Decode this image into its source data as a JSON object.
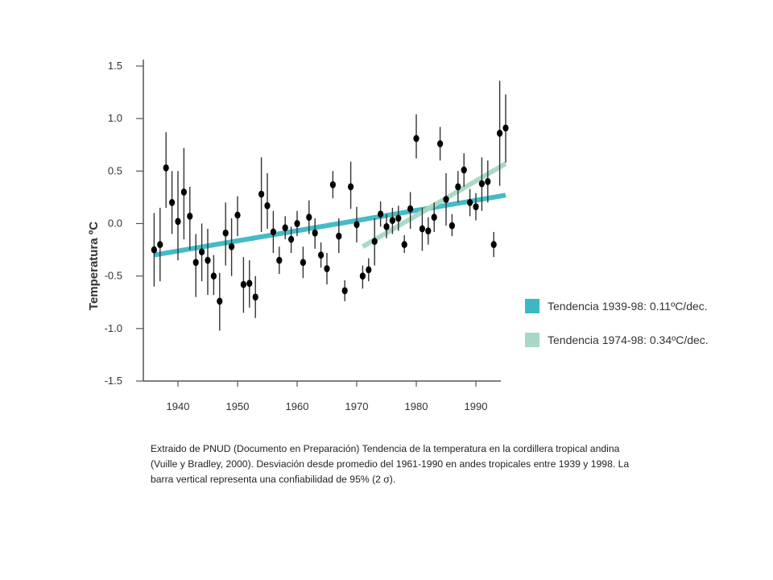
{
  "chart_data": {
    "type": "scatter",
    "title": "",
    "xlabel": "",
    "ylabel": "Temperatura ºC",
    "xlim": [
      1935,
      1995
    ],
    "ylim": [
      -1.5,
      1.5
    ],
    "x_ticks": [
      1940,
      1950,
      1960,
      1970,
      1980,
      1990
    ],
    "y_ticks": [
      1.5,
      1.0,
      0.5,
      0.0,
      -0.5,
      -1.0,
      -1.5
    ],
    "y_tick_labels": [
      "1.5",
      "1.0",
      "0.5",
      "0.0",
      "-0.5",
      "-1.0",
      "-1.5"
    ],
    "grid": false,
    "legend_position": "right",
    "points": [
      {
        "x": 1936,
        "y": -0.25,
        "lo": -0.6,
        "hi": 0.1
      },
      {
        "x": 1937,
        "y": -0.2,
        "lo": -0.55,
        "hi": 0.15
      },
      {
        "x": 1938,
        "y": 0.53,
        "lo": 0.15,
        "hi": 0.87
      },
      {
        "x": 1939,
        "y": 0.2,
        "lo": -0.1,
        "hi": 0.5
      },
      {
        "x": 1940,
        "y": 0.02,
        "lo": -0.35,
        "hi": 0.5
      },
      {
        "x": 1941,
        "y": 0.3,
        "lo": -0.15,
        "hi": 0.72
      },
      {
        "x": 1942,
        "y": 0.07,
        "lo": -0.25,
        "hi": 0.35
      },
      {
        "x": 1943,
        "y": -0.37,
        "lo": -0.7,
        "hi": -0.1
      },
      {
        "x": 1944,
        "y": -0.27,
        "lo": -0.55,
        "hi": 0.0
      },
      {
        "x": 1945,
        "y": -0.35,
        "lo": -0.68,
        "hi": -0.05
      },
      {
        "x": 1946,
        "y": -0.5,
        "lo": -0.68,
        "hi": -0.3
      },
      {
        "x": 1947,
        "y": -0.74,
        "lo": -1.02,
        "hi": -0.47
      },
      {
        "x": 1948,
        "y": -0.09,
        "lo": -0.4,
        "hi": 0.2
      },
      {
        "x": 1949,
        "y": -0.22,
        "lo": -0.5,
        "hi": 0.05
      },
      {
        "x": 1950,
        "y": 0.08,
        "lo": -0.12,
        "hi": 0.26
      },
      {
        "x": 1951,
        "y": -0.58,
        "lo": -0.85,
        "hi": -0.32
      },
      {
        "x": 1952,
        "y": -0.57,
        "lo": -0.8,
        "hi": -0.35
      },
      {
        "x": 1953,
        "y": -0.7,
        "lo": -0.9,
        "hi": -0.5
      },
      {
        "x": 1954,
        "y": 0.28,
        "lo": -0.08,
        "hi": 0.63
      },
      {
        "x": 1955,
        "y": 0.17,
        "lo": -0.05,
        "hi": 0.48
      },
      {
        "x": 1956,
        "y": -0.08,
        "lo": -0.28,
        "hi": 0.12
      },
      {
        "x": 1957,
        "y": -0.35,
        "lo": -0.48,
        "hi": -0.22
      },
      {
        "x": 1958,
        "y": -0.04,
        "lo": -0.15,
        "hi": 0.07
      },
      {
        "x": 1959,
        "y": -0.15,
        "lo": -0.28,
        "hi": -0.03
      },
      {
        "x": 1960,
        "y": 0.0,
        "lo": -0.12,
        "hi": 0.12
      },
      {
        "x": 1961,
        "y": -0.37,
        "lo": -0.52,
        "hi": -0.22
      },
      {
        "x": 1962,
        "y": 0.06,
        "lo": -0.1,
        "hi": 0.22
      },
      {
        "x": 1963,
        "y": -0.09,
        "lo": -0.24,
        "hi": 0.05
      },
      {
        "x": 1964,
        "y": -0.3,
        "lo": -0.42,
        "hi": -0.18
      },
      {
        "x": 1965,
        "y": -0.43,
        "lo": -0.58,
        "hi": -0.28
      },
      {
        "x": 1966,
        "y": 0.37,
        "lo": 0.24,
        "hi": 0.5
      },
      {
        "x": 1967,
        "y": -0.12,
        "lo": -0.28,
        "hi": 0.05
      },
      {
        "x": 1968,
        "y": -0.64,
        "lo": -0.74,
        "hi": -0.54
      },
      {
        "x": 1969,
        "y": 0.35,
        "lo": 0.14,
        "hi": 0.59
      },
      {
        "x": 1970,
        "y": -0.01,
        "lo": -0.18,
        "hi": 0.16
      },
      {
        "x": 1971,
        "y": -0.5,
        "lo": -0.62,
        "hi": -0.4
      },
      {
        "x": 1972,
        "y": -0.44,
        "lo": -0.55,
        "hi": -0.33
      },
      {
        "x": 1973,
        "y": -0.17,
        "lo": -0.4,
        "hi": 0.05
      },
      {
        "x": 1974,
        "y": 0.09,
        "lo": -0.03,
        "hi": 0.21
      },
      {
        "x": 1975,
        "y": -0.03,
        "lo": -0.14,
        "hi": 0.09
      },
      {
        "x": 1976,
        "y": 0.03,
        "lo": -0.1,
        "hi": 0.15
      },
      {
        "x": 1977,
        "y": 0.05,
        "lo": -0.07,
        "hi": 0.17
      },
      {
        "x": 1978,
        "y": -0.2,
        "lo": -0.28,
        "hi": -0.11
      },
      {
        "x": 1979,
        "y": 0.14,
        "lo": -0.05,
        "hi": 0.3
      },
      {
        "x": 1980,
        "y": 0.81,
        "lo": 0.62,
        "hi": 1.04
      },
      {
        "x": 1981,
        "y": -0.05,
        "lo": -0.26,
        "hi": 0.15
      },
      {
        "x": 1982,
        "y": -0.07,
        "lo": -0.2,
        "hi": 0.06
      },
      {
        "x": 1983,
        "y": 0.06,
        "lo": -0.08,
        "hi": 0.2
      },
      {
        "x": 1984,
        "y": 0.76,
        "lo": 0.6,
        "hi": 0.92
      },
      {
        "x": 1985,
        "y": 0.23,
        "lo": -0.02,
        "hi": 0.48
      },
      {
        "x": 1986,
        "y": -0.02,
        "lo": -0.12,
        "hi": 0.09
      },
      {
        "x": 1987,
        "y": 0.35,
        "lo": 0.2,
        "hi": 0.5
      },
      {
        "x": 1988,
        "y": 0.51,
        "lo": 0.35,
        "hi": 0.67
      },
      {
        "x": 1989,
        "y": 0.2,
        "lo": 0.07,
        "hi": 0.33
      },
      {
        "x": 1990,
        "y": 0.16,
        "lo": 0.03,
        "hi": 0.29
      },
      {
        "x": 1991,
        "y": 0.38,
        "lo": 0.12,
        "hi": 0.63
      },
      {
        "x": 1992,
        "y": 0.4,
        "lo": 0.2,
        "hi": 0.6
      },
      {
        "x": 1993,
        "y": -0.2,
        "lo": -0.32,
        "hi": -0.08
      },
      {
        "x": 1994,
        "y": 0.86,
        "lo": 0.36,
        "hi": 1.36
      },
      {
        "x": 1995,
        "y": 0.91,
        "lo": 0.58,
        "hi": 1.23
      }
    ],
    "trend_lines": [
      {
        "name": "Tendencia 1939-98: 0.11ºC/dec.",
        "color": "#3bb8c4",
        "x": [
          1936,
          1995
        ],
        "y": [
          -0.3,
          0.27
        ]
      },
      {
        "name": "Tendencia 1974-98: 0.34ºC/dec.",
        "color": "#a8d8c3",
        "x": [
          1971,
          1995
        ],
        "y": [
          -0.22,
          0.57
        ]
      }
    ]
  },
  "caption": "Extraido de PNUD (Documento en Preparación) Tendencia de la temperatura en la cordillera tropical andina (Vuille y Bradley, 2000). Desviación desde promedio del 1961-1990 en andes tropicales entre 1939 y 1998. La barra vertical representa una confiabilidad de 95% (2 σ)."
}
